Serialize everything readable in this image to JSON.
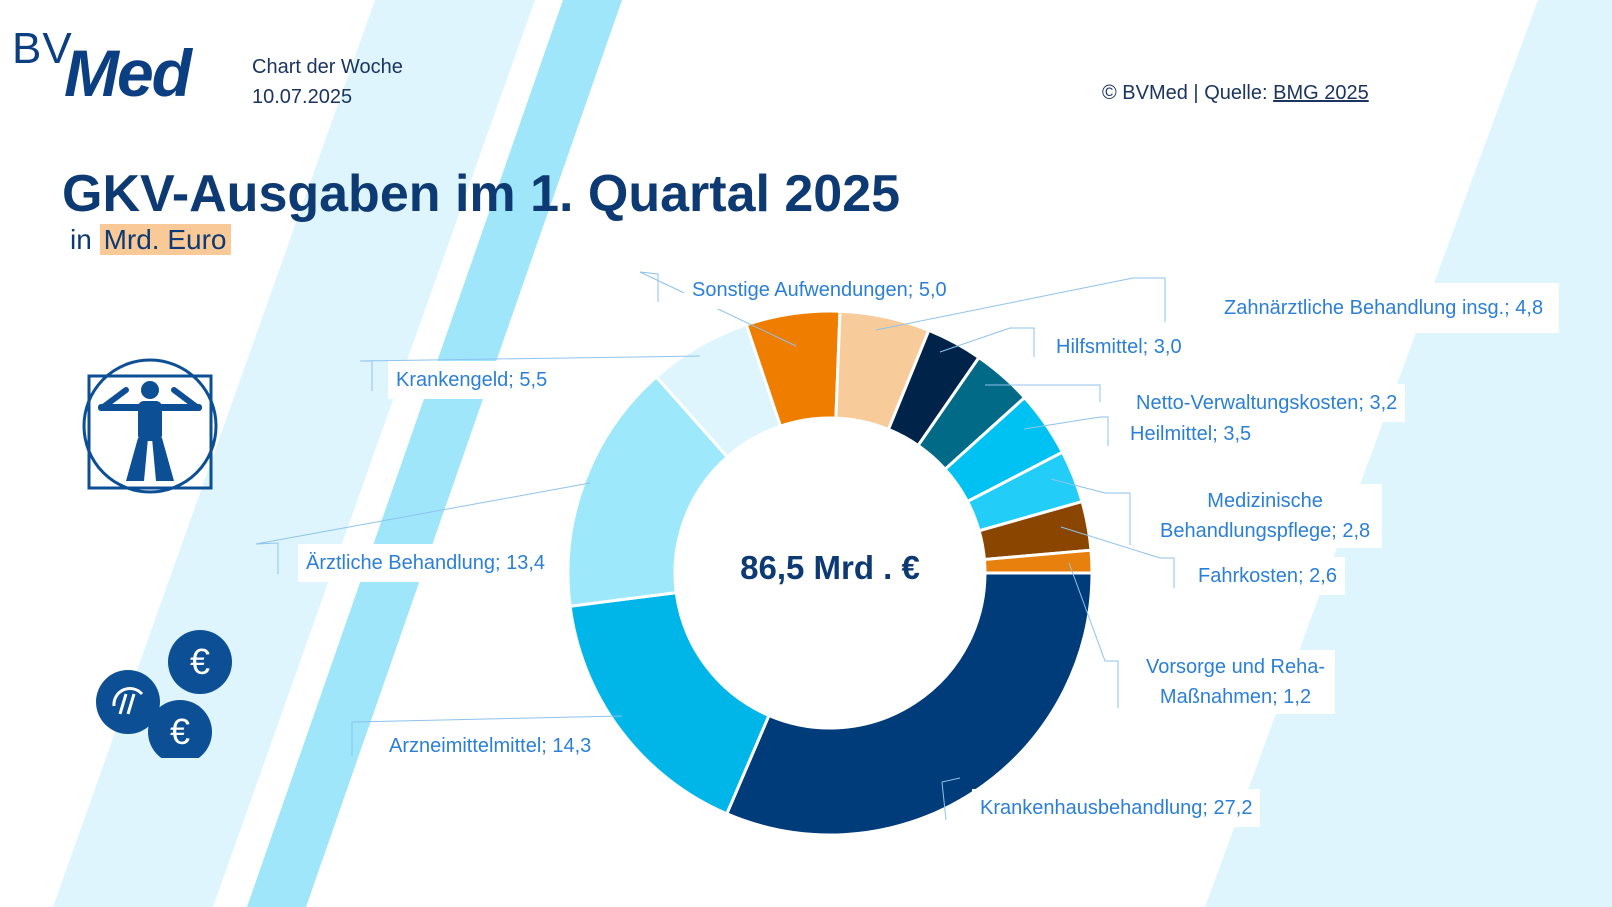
{
  "header": {
    "logo_bv": "BV",
    "logo_med": "Med",
    "chart_of_week": "Chart der Woche",
    "date": "10.07.2025",
    "copyright": "© BVMed | Quelle: ",
    "source_link": "BMG 2025"
  },
  "title": "GKV-Ausgaben im 1. Quartal 2025",
  "unit_prefix": "in ",
  "unit": "Mrd. Euro",
  "colors": {
    "navy": "#0d3a73",
    "label_blue": "#2b7fd6",
    "bg_stripe_light": "#dff5fd",
    "bg_stripe_mid": "#9fe6fb"
  },
  "icons": [
    "vitruvian-man-icon",
    "coins-icon"
  ],
  "chart_data": {
    "type": "pie",
    "donut": true,
    "center_label": "86,5 Mrd . €",
    "unit": "Mrd. Euro",
    "slices": [
      {
        "name": "Krankenhausbehandlung",
        "value": 27.2,
        "label": "Krankenhausbehandlung; 27,2",
        "color": "#003b7a"
      },
      {
        "name": "Arzneimittelmittel",
        "value": 14.3,
        "label": "Arzneimittelmittel; 14,3",
        "color": "#00b5e8"
      },
      {
        "name": "Ärztliche Behandlung",
        "value": 13.4,
        "label": "Ärztliche Behandlung; 13,4",
        "color": "#9ee8fb"
      },
      {
        "name": "Krankengeld",
        "value": 5.5,
        "label": "Krankengeld; 5,5",
        "color": "#def5fd"
      },
      {
        "name": "Sonstige Aufwendungen",
        "value": 5.0,
        "label": "Sonstige Aufwendungen; 5,0",
        "color": "#ef7d00"
      },
      {
        "name": "Zahnärztliche Behandlung insg.",
        "value": 4.8,
        "label": "Zahnärztliche Behandlung insg.; 4,8",
        "color": "#f8cb9a"
      },
      {
        "name": "Hilfsmittel",
        "value": 3.0,
        "label": "Hilfsmittel; 3,0",
        "color": "#002349"
      },
      {
        "name": "Netto-Verwaltungskosten",
        "value": 3.2,
        "label": "Netto-Verwaltungskosten; 3,2",
        "color": "#006a87"
      },
      {
        "name": "Heilmittel",
        "value": 3.5,
        "label": "Heilmittel; 3,5",
        "color": "#00c2f2"
      },
      {
        "name": "Medizinische Behandlungspflege",
        "value": 2.8,
        "label_line1": "Medizinische",
        "label_line2": "Behandlungspflege; 2,8",
        "color": "#22cdf7"
      },
      {
        "name": "Fahrkosten",
        "value": 2.6,
        "label": "Fahrkosten; 2,6",
        "color": "#8a4500"
      },
      {
        "name": "Vorsorge und Reha-Maßnahmen",
        "value": 1.2,
        "label_line1": "Vorsorge und Reha-",
        "label_line2": "Maßnahmen; 1,2",
        "color": "#e8800e"
      }
    ]
  }
}
